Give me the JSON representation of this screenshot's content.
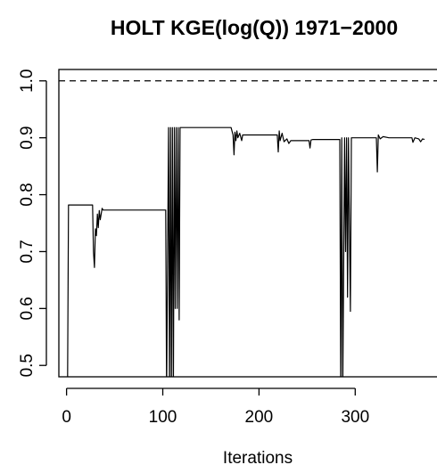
{
  "chart_data": {
    "type": "line",
    "title": "HOLT KGE(log(Q)) 1971−2000",
    "xlabel": "Iterations",
    "ylabel": "",
    "xlim": [
      -8,
      385
    ],
    "ylim": [
      0.48,
      1.02
    ],
    "x_ticks": [
      0,
      100,
      200,
      300
    ],
    "x_tick_labels": [
      "0",
      "100",
      "200",
      "300"
    ],
    "y_ticks": [
      0.5,
      0.6,
      0.7,
      0.8,
      0.9,
      1.0
    ],
    "y_tick_labels": [
      "0.5",
      "0.6",
      "0.7",
      "0.8",
      "0.9",
      "1.0"
    ],
    "reference_line": {
      "y": 1.0,
      "style": "dashed"
    },
    "grid": false,
    "series": [
      {
        "color": "#000000",
        "points": [
          [
            1,
            0.45
          ],
          [
            2,
            0.782
          ],
          [
            27,
            0.782
          ],
          [
            28,
            0.7
          ],
          [
            29,
            0.672
          ],
          [
            30,
            0.74
          ],
          [
            31,
            0.728
          ],
          [
            32,
            0.766
          ],
          [
            33,
            0.742
          ],
          [
            34,
            0.772
          ],
          [
            35,
            0.756
          ],
          [
            37,
            0.776
          ],
          [
            38,
            0.773
          ],
          [
            103,
            0.773
          ],
          [
            104,
            0.45
          ],
          [
            106,
            0.918
          ],
          [
            107,
            0.45
          ],
          [
            108,
            0.918
          ],
          [
            109,
            0.45
          ],
          [
            110,
            0.918
          ],
          [
            111,
            0.45
          ],
          [
            112,
            0.918
          ],
          [
            113,
            0.6
          ],
          [
            114,
            0.918
          ],
          [
            115,
            0.6
          ],
          [
            116,
            0.918
          ],
          [
            117,
            0.58
          ],
          [
            118,
            0.918
          ],
          [
            120,
            0.918
          ],
          [
            171,
            0.918
          ],
          [
            173,
            0.905
          ],
          [
            174,
            0.87
          ],
          [
            175,
            0.91
          ],
          [
            176,
            0.895
          ],
          [
            177,
            0.912
          ],
          [
            178,
            0.9
          ],
          [
            180,
            0.908
          ],
          [
            182,
            0.895
          ],
          [
            183,
            0.905
          ],
          [
            219,
            0.905
          ],
          [
            220,
            0.875
          ],
          [
            221,
            0.912
          ],
          [
            222,
            0.895
          ],
          [
            224,
            0.908
          ],
          [
            226,
            0.893
          ],
          [
            229,
            0.898
          ],
          [
            231,
            0.89
          ],
          [
            233,
            0.895
          ],
          [
            252,
            0.895
          ],
          [
            253,
            0.882
          ],
          [
            254,
            0.896
          ],
          [
            256,
            0.897
          ],
          [
            284,
            0.897
          ],
          [
            285,
            0.45
          ],
          [
            286,
            0.9
          ],
          [
            287,
            0.45
          ],
          [
            289,
            0.9
          ],
          [
            290,
            0.7
          ],
          [
            291,
            0.9
          ],
          [
            292,
            0.62
          ],
          [
            293,
            0.9
          ],
          [
            295,
            0.595
          ],
          [
            296,
            0.9
          ],
          [
            297,
            0.9
          ],
          [
            322,
            0.9
          ],
          [
            323,
            0.84
          ],
          [
            324,
            0.905
          ],
          [
            326,
            0.898
          ],
          [
            329,
            0.902
          ],
          [
            335,
            0.9
          ],
          [
            359,
            0.9
          ],
          [
            360,
            0.892
          ],
          [
            362,
            0.9
          ],
          [
            366,
            0.898
          ],
          [
            368,
            0.893
          ],
          [
            370,
            0.898
          ],
          [
            372,
            0.897
          ]
        ]
      }
    ]
  }
}
